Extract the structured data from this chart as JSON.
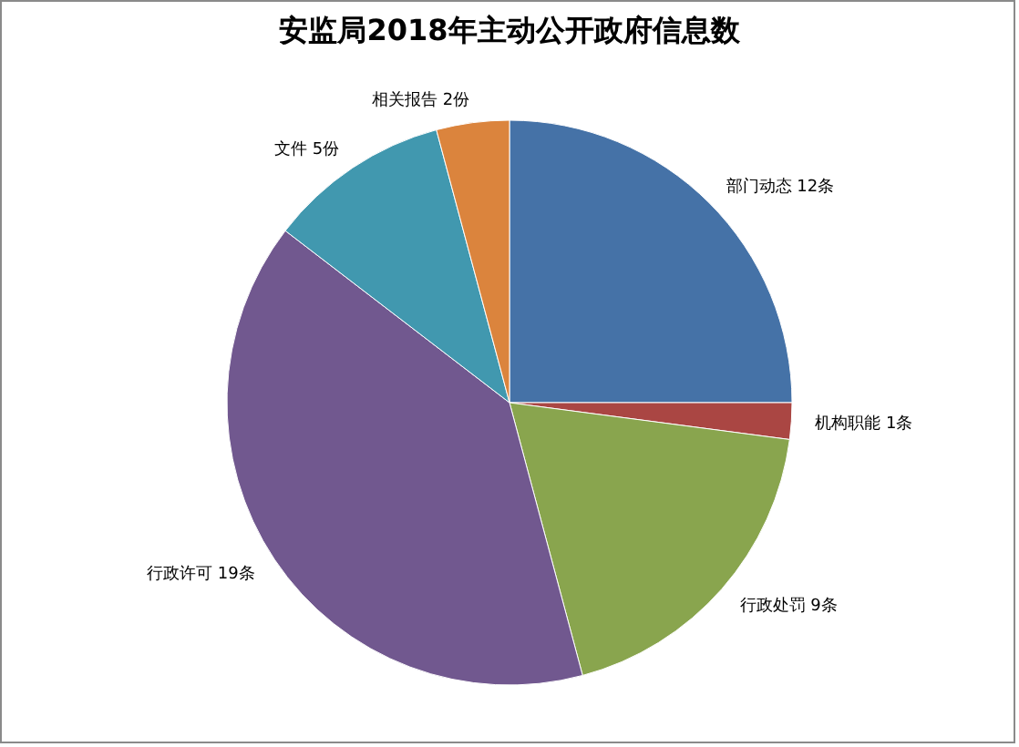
{
  "chart_data": {
    "type": "pie",
    "title": "安监局2018年主动公开政府信息数",
    "categories": [
      "部门动态",
      "机构职能",
      "行政处罚",
      "行政许可",
      "文件",
      "相关报告"
    ],
    "values": [
      12,
      1,
      9,
      19,
      5,
      2
    ],
    "value_labels": [
      "12条",
      "1条",
      "9条",
      "19条",
      "5份",
      "2份"
    ],
    "colors": [
      "#4572a7",
      "#aa4643",
      "#89a54e",
      "#71588f",
      "#4198af",
      "#db843d"
    ],
    "legend": false
  }
}
